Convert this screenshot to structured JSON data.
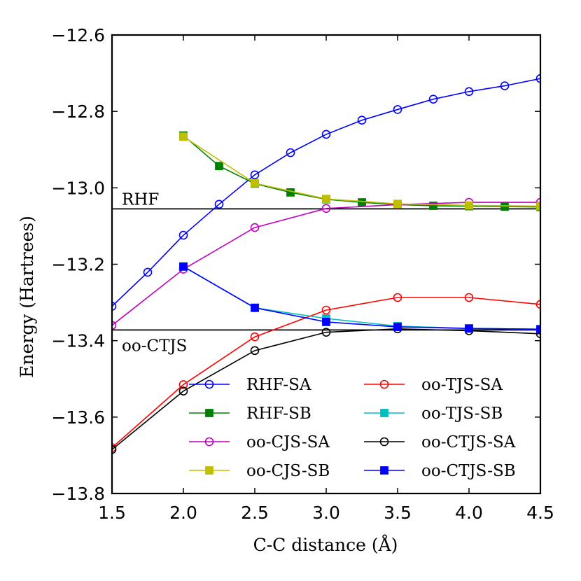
{
  "chart_data": {
    "type": "line",
    "title": "",
    "xlabel": "C-C distance (Å)",
    "ylabel": "Energy (Hartrees)",
    "xlim": [
      1.5,
      4.5
    ],
    "ylim": [
      -13.8,
      -12.6
    ],
    "x_ticks": [
      1.5,
      2.0,
      2.5,
      3.0,
      3.5,
      4.0,
      4.5
    ],
    "x_tick_labels": [
      "1.5",
      "2.0",
      "2.5",
      "3.0",
      "3.5",
      "4.0",
      "4.5"
    ],
    "y_ticks": [
      -12.6,
      -12.8,
      -13.0,
      -13.2,
      -13.4,
      -13.6,
      -13.8
    ],
    "y_tick_labels": [
      "−12.6",
      "−12.8",
      "−13.0",
      "−13.2",
      "−13.4",
      "−13.6",
      "−13.8"
    ],
    "grid": false,
    "legend_position": "bottom-right",
    "hlines": [
      {
        "label": "RHF",
        "y": -13.055
      },
      {
        "label": "oo-CTJS",
        "y": -13.372
      }
    ],
    "series": [
      {
        "name": "RHF-SA",
        "color": "#0000ff",
        "marker": "circle-open",
        "x": [
          1.5,
          1.75,
          2.0,
          2.25,
          2.5,
          2.75,
          3.0,
          3.25,
          3.5,
          3.75,
          4.0,
          4.25,
          4.5
        ],
        "y": [
          -13.31,
          -13.221,
          -13.124,
          -13.043,
          -12.966,
          -12.908,
          -12.86,
          -12.823,
          -12.795,
          -12.768,
          -12.748,
          -12.733,
          -12.714
        ]
      },
      {
        "name": "RHF-SB",
        "color": "#008000",
        "marker": "square-filled",
        "x": [
          2.0,
          2.25,
          2.5,
          2.75,
          3.0,
          3.25,
          3.5,
          3.75,
          4.0,
          4.25,
          4.5
        ],
        "y": [
          -12.863,
          -12.943,
          -12.989,
          -13.012,
          -13.03,
          -13.038,
          -13.044,
          -13.047,
          -13.048,
          -13.049,
          -13.05
        ]
      },
      {
        "name": "oo-CJS-SA",
        "color": "#bf00bf",
        "marker": "circle-open",
        "x": [
          1.5,
          2.0,
          2.5,
          3.0,
          3.5,
          4.0,
          4.5
        ],
        "y": [
          -13.36,
          -13.213,
          -13.104,
          -13.054,
          -13.044,
          -13.038,
          -13.038
        ]
      },
      {
        "name": "oo-CJS-SB",
        "color": "#bfbf00",
        "marker": "square-filled",
        "x": [
          2.0,
          2.5,
          3.0,
          3.5,
          4.0,
          4.5
        ],
        "y": [
          -12.866,
          -12.988,
          -13.029,
          -13.042,
          -13.046,
          -13.048
        ]
      },
      {
        "name": "oo-TJS-SA",
        "color": "#ff0000",
        "marker": "circle-open",
        "x": [
          1.5,
          2.0,
          2.5,
          3.0,
          3.5,
          4.0,
          4.5
        ],
        "y": [
          -13.68,
          -13.515,
          -13.39,
          -13.32,
          -13.287,
          -13.287,
          -13.305
        ]
      },
      {
        "name": "oo-TJS-SB",
        "color": "#00bfbf",
        "marker": "square-filled",
        "x": [
          2.0,
          2.5,
          3.0,
          3.5,
          4.0,
          4.5
        ],
        "y": [
          -13.206,
          -13.314,
          -13.342,
          -13.362,
          -13.368,
          -13.37
        ]
      },
      {
        "name": "oo-CTJS-SA",
        "color": "#000000",
        "marker": "circle-open",
        "x": [
          1.5,
          2.0,
          2.5,
          3.0,
          3.5,
          4.0,
          4.5
        ],
        "y": [
          -13.685,
          -13.532,
          -13.426,
          -13.378,
          -13.369,
          -13.374,
          -13.382
        ]
      },
      {
        "name": "oo-CTJS-SB",
        "color": "#0000ff",
        "marker": "square-filled",
        "x": [
          2.0,
          2.5,
          3.0,
          3.5,
          4.0,
          4.5
        ],
        "y": [
          -13.206,
          -13.314,
          -13.351,
          -13.364,
          -13.368,
          -13.37
        ]
      }
    ]
  }
}
